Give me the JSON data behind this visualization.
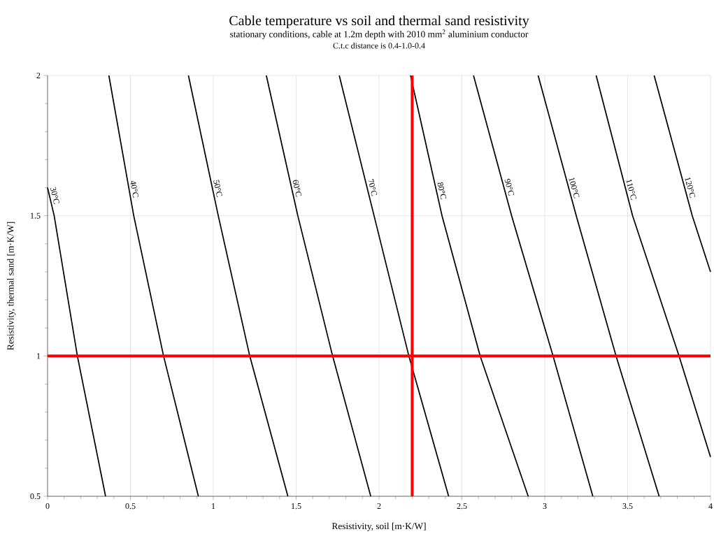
{
  "chart_data": {
    "type": "line",
    "title": "Cable temperature vs soil and thermal sand resistivity",
    "subtitle": "stationary conditions, cable at 1.2m depth with 2010 mm$^{2}$ aluminium  conductor",
    "annotations": [
      "C.t.c  distance is 0.4-1.0-0.4"
    ],
    "xlabel": "Resistivity, soil [m·K/W]",
    "ylabel": "Resistivity, thermal sand [m·K/W]",
    "xlim": [
      0,
      4
    ],
    "ylim": [
      0.5,
      2
    ],
    "xticks": [
      0,
      0.5,
      1,
      1.5,
      2,
      2.5,
      3,
      3.5,
      4
    ],
    "yticks": [
      0.5,
      1,
      1.5,
      2
    ],
    "grid": true,
    "marker": "none",
    "line_style": "solid",
    "series": [
      {
        "name": "30°C",
        "color": "#000000",
        "x": [
          0,
          0.04,
          0.18,
          0.35
        ],
        "values": [
          1.6,
          1.5,
          1,
          0.5
        ]
      },
      {
        "name": "40°C",
        "color": "#000000",
        "x": [
          0.37,
          0.52,
          0.7,
          0.91
        ],
        "values": [
          2,
          1.5,
          1,
          0.5
        ]
      },
      {
        "name": "50°C",
        "color": "#000000",
        "x": [
          0.85,
          1.03,
          1.22,
          1.45
        ],
        "values": [
          2,
          1.5,
          1,
          0.5
        ]
      },
      {
        "name": "60°C",
        "color": "#000000",
        "x": [
          1.32,
          1.51,
          1.72,
          1.95
        ],
        "values": [
          2,
          1.5,
          1,
          0.5
        ]
      },
      {
        "name": "70°C",
        "color": "#000000",
        "x": [
          1.76,
          1.97,
          2.18,
          2.42
        ],
        "values": [
          2,
          1.5,
          1,
          0.5
        ]
      },
      {
        "name": "80°C",
        "color": "#000000",
        "x": [
          2.19,
          2.38,
          2.61,
          2.9
        ],
        "values": [
          2,
          1.5,
          1,
          0.5
        ]
      },
      {
        "name": "90°C",
        "color": "#000000",
        "x": [
          2.57,
          2.8,
          3.05,
          3.29
        ],
        "values": [
          2,
          1.5,
          1,
          0.5
        ]
      },
      {
        "name": "100°C",
        "color": "#000000",
        "x": [
          2.96,
          3.19,
          3.43,
          3.69
        ],
        "values": [
          2,
          1.5,
          1,
          0.5
        ]
      },
      {
        "name": "110°C",
        "color": "#000000",
        "x": [
          3.31,
          3.53,
          3.81,
          4
        ],
        "values": [
          2,
          1.5,
          1,
          0.64
        ]
      },
      {
        "name": "120°C",
        "color": "#000000",
        "x": [
          3.66,
          3.89,
          4
        ],
        "values": [
          2,
          1.5,
          1.3
        ]
      }
    ],
    "ref_lines": [
      {
        "axis": "x",
        "value": 2.2,
        "color": "#ff0000"
      },
      {
        "axis": "y",
        "value": 1,
        "color": "#ff0000"
      }
    ]
  }
}
